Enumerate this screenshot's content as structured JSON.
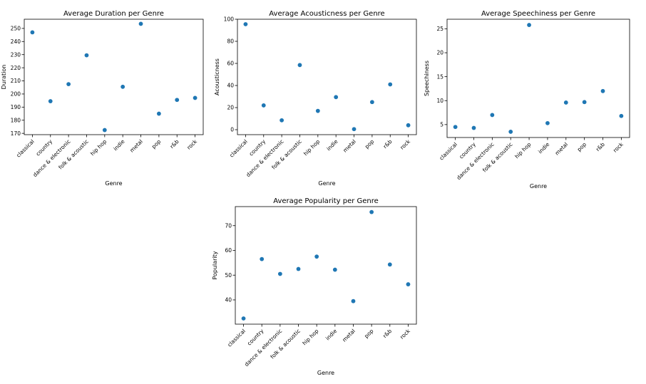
{
  "chart_data": [
    {
      "type": "scatter",
      "title": "Average Duration per Genre",
      "xlabel": "Genre",
      "ylabel": "Duration",
      "categories": [
        "classical",
        "country",
        "dance & electronic",
        "folk & acoustic",
        "hip hop",
        "indie",
        "metal",
        "pop",
        "r&b",
        "rock"
      ],
      "values": [
        247,
        194.5,
        207.5,
        229.5,
        172.5,
        205.5,
        253.5,
        185,
        195.5,
        197
      ],
      "ylim": [
        169,
        257
      ],
      "yticks": [
        170,
        180,
        190,
        200,
        210,
        220,
        230,
        240,
        250
      ],
      "color": "#1f77b4",
      "grid": false
    },
    {
      "type": "scatter",
      "title": "Average Acousticness per Genre",
      "xlabel": "Genre",
      "ylabel": "Acousticness",
      "categories": [
        "classical",
        "country",
        "dance & electronic",
        "folk & acoustic",
        "hip hop",
        "indie",
        "metal",
        "pop",
        "r&b",
        "rock"
      ],
      "values": [
        95.5,
        22,
        8.5,
        58.5,
        17,
        29.5,
        0.5,
        25,
        41,
        4
      ],
      "ylim": [
        -4.5,
        100
      ],
      "yticks": [
        0,
        20,
        40,
        60,
        80,
        100
      ],
      "color": "#1f77b4",
      "grid": false
    },
    {
      "type": "scatter",
      "title": "Average Speechiness per Genre",
      "xlabel": "Genre",
      "ylabel": "Speechiness",
      "categories": [
        "classical",
        "country",
        "dance & electronic",
        "folk & acoustic",
        "hip hop",
        "indie",
        "metal",
        "pop",
        "r&b",
        "rock"
      ],
      "values": [
        4.5,
        4.3,
        7,
        3.5,
        25.8,
        5.3,
        9.6,
        9.7,
        12,
        6.8
      ],
      "ylim": [
        2.3,
        27
      ],
      "yticks": [
        5,
        10,
        15,
        20,
        25
      ],
      "color": "#1f77b4",
      "grid": false
    },
    {
      "type": "scatter",
      "title": "Average Popularity per Genre",
      "xlabel": "Genre",
      "ylabel": "Popularity",
      "categories": [
        "classical",
        "country",
        "dance & electronic",
        "folk & acoustic",
        "hip hop",
        "indie",
        "metal",
        "pop",
        "r&b",
        "rock"
      ],
      "values": [
        32.5,
        56.5,
        50.5,
        52.5,
        57.5,
        52.2,
        39.5,
        75.5,
        54.3,
        46.3
      ],
      "ylim": [
        30.2,
        77.7
      ],
      "yticks": [
        40,
        50,
        60,
        70
      ],
      "color": "#1f77b4",
      "grid": false
    }
  ]
}
